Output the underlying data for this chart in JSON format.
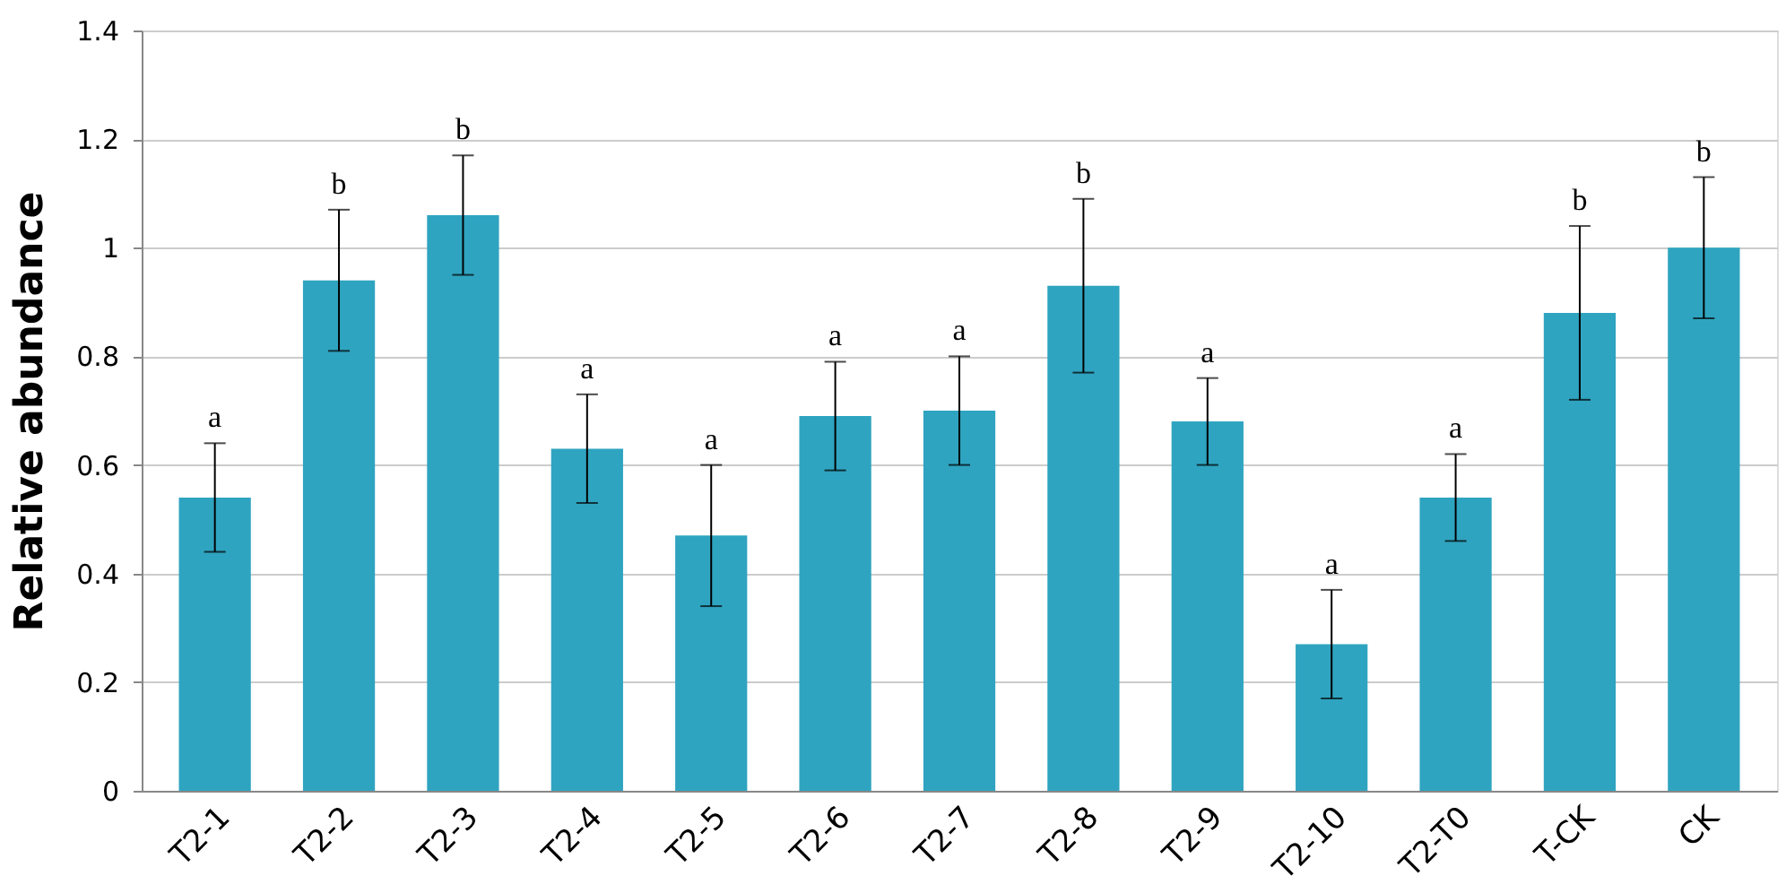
{
  "chart_data": {
    "type": "bar",
    "ylabel": "Relative abundance",
    "categories": [
      "T2-1",
      "T2-2",
      "T2-3",
      "T2-4",
      "T2-5",
      "T2-6",
      "T2-7",
      "T2-8",
      "T2-9",
      "T2-10",
      "T2-T0",
      "T-CK",
      "CK"
    ],
    "values": [
      0.54,
      0.94,
      1.06,
      0.63,
      0.47,
      0.69,
      0.7,
      0.93,
      0.68,
      0.27,
      0.54,
      0.88,
      1.0
    ],
    "errors": [
      0.1,
      0.13,
      0.11,
      0.1,
      0.13,
      0.1,
      0.1,
      0.16,
      0.08,
      0.1,
      0.08,
      0.16,
      0.13
    ],
    "color": "#2fa4c0",
    "ylim": [
      0,
      1.4
    ],
    "yticks": [
      0,
      0.2,
      0.4,
      0.6,
      0.8,
      1,
      1.2,
      1.4
    ],
    "grid": "y",
    "annotations": [
      {
        "text": "a",
        "x": "T2-1",
        "y": 0.64
      },
      {
        "text": "b",
        "x": "T2-2",
        "y": 1.07
      },
      {
        "text": "b",
        "x": "T2-3",
        "y": 1.17
      },
      {
        "text": "a",
        "x": "T2-4",
        "y": 0.73
      },
      {
        "text": "a",
        "x": "T2-5",
        "y": 0.6
      },
      {
        "text": "a",
        "x": "T2-6",
        "y": 0.79
      },
      {
        "text": "a",
        "x": "T2-7",
        "y": 0.8
      },
      {
        "text": "b",
        "x": "T2-8",
        "y": 1.09
      },
      {
        "text": "a",
        "x": "T2-9",
        "y": 0.76
      },
      {
        "text": "a",
        "x": "T2-10",
        "y": 0.37
      },
      {
        "text": "a",
        "x": "T2-T0",
        "y": 0.62
      },
      {
        "text": "b",
        "x": "T-CK",
        "y": 1.04
      },
      {
        "text": "b",
        "x": "CK",
        "y": 1.13
      }
    ]
  }
}
